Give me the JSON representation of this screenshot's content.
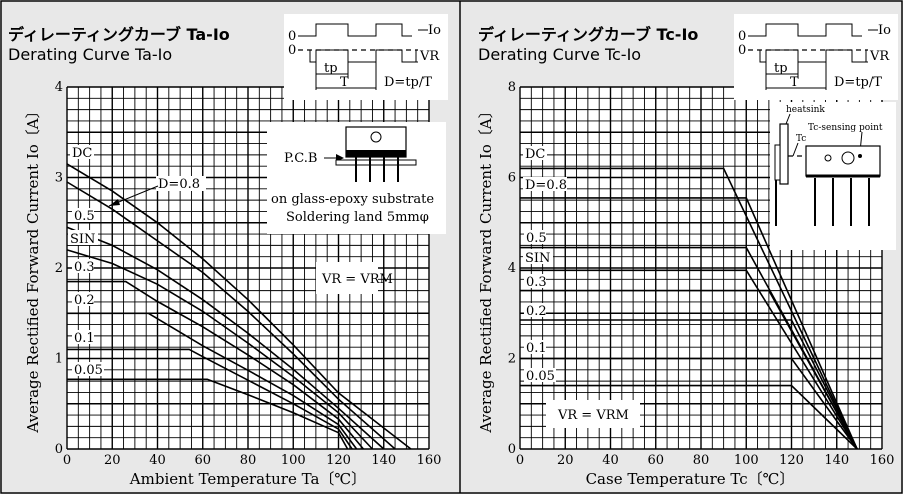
{
  "chart_data": [
    {
      "type": "line",
      "title_jp": "ディレーティングカーブ Ta-Io",
      "title_en": "Derating Curve Ta-Io",
      "xlabel": "Ambient Temperature Ta〔℃〕",
      "ylabel": "Average Rectified Forward Current Io〔A〕",
      "xlim": [
        0,
        160
      ],
      "ylim": [
        0,
        4
      ],
      "x_ticks": [
        "0",
        "20",
        "40",
        "60",
        "80",
        "100",
        "120",
        "140",
        "160"
      ],
      "y_ticks": [
        "0",
        "1",
        "2",
        "3",
        "4"
      ],
      "grid": true,
      "series": [
        {
          "name": "DC",
          "points": [
            [
              0,
              3.15
            ],
            [
              20,
              2.85
            ],
            [
              40,
              2.5
            ],
            [
              60,
              2.1
            ],
            [
              80,
              1.65
            ],
            [
              100,
              1.15
            ],
            [
              120,
              0.62
            ],
            [
              152,
              0
            ]
          ]
        },
        {
          "name": "D=0.8",
          "points": [
            [
              0,
              2.95
            ],
            [
              20,
              2.65
            ],
            [
              40,
              2.3
            ],
            [
              60,
              1.95
            ],
            [
              80,
              1.52
            ],
            [
              100,
              1.05
            ],
            [
              120,
              0.55
            ],
            [
              145,
              0
            ]
          ]
        },
        {
          "name": "0.5",
          "points": [
            [
              0,
              2.45
            ],
            [
              20,
              2.25
            ],
            [
              40,
              1.98
            ],
            [
              60,
              1.65
            ],
            [
              80,
              1.28
            ],
            [
              100,
              0.88
            ],
            [
              120,
              0.45
            ],
            [
              140,
              0
            ]
          ]
        },
        {
          "name": "SIN",
          "points": [
            [
              0,
              2.2
            ],
            [
              20,
              2.05
            ],
            [
              40,
              1.82
            ],
            [
              60,
              1.52
            ],
            [
              80,
              1.17
            ],
            [
              100,
              0.8
            ],
            [
              120,
              0.4
            ],
            [
              135,
              0
            ]
          ]
        },
        {
          "name": "0.3",
          "points": [
            [
              0,
              1.85
            ],
            [
              26,
              1.85
            ],
            [
              40,
              1.63
            ],
            [
              60,
              1.35
            ],
            [
              80,
              1.04
            ],
            [
              100,
              0.71
            ],
            [
              120,
              0.33
            ],
            [
              131,
              0
            ]
          ]
        },
        {
          "name": "0.2",
          "points": [
            [
              0,
              1.5
            ],
            [
              36,
              1.5
            ],
            [
              60,
              1.14
            ],
            [
              80,
              0.87
            ],
            [
              100,
              0.59
            ],
            [
              120,
              0.27
            ],
            [
              128,
              0
            ]
          ]
        },
        {
          "name": "0.1",
          "points": [
            [
              0,
              1.1
            ],
            [
              54,
              1.1
            ],
            [
              60,
              1.02
            ],
            [
              80,
              0.76
            ],
            [
              100,
              0.5
            ],
            [
              120,
              0.22
            ],
            [
              126,
              0
            ]
          ]
        },
        {
          "name": "0.05",
          "points": [
            [
              0,
              0.77
            ],
            [
              62,
              0.77
            ],
            [
              80,
              0.6
            ],
            [
              100,
              0.4
            ],
            [
              120,
              0.18
            ],
            [
              124,
              0
            ]
          ]
        }
      ],
      "notes": {
        "pcb": "P.C.B",
        "substrate": "on glass-epoxy substrate",
        "land": "Soldering land 5mmφ",
        "vr": "VR = VRM"
      },
      "waveform": {
        "io": "Io",
        "vr": "VR",
        "tp": "tp",
        "t": "T",
        "duty": "D=tp/T",
        "zero": "0"
      }
    },
    {
      "type": "line",
      "title_jp": "ディレーティングカーブ Tc-Io",
      "title_en": "Derating Curve Tc-Io",
      "xlabel": "Case Temperature Tc〔℃〕",
      "ylabel": "Average Rectified Forward Current Io〔A〕",
      "xlim": [
        0,
        160
      ],
      "ylim": [
        0,
        8
      ],
      "x_ticks": [
        "0",
        "20",
        "40",
        "60",
        "80",
        "100",
        "120",
        "140",
        "160"
      ],
      "y_ticks": [
        "0",
        "2",
        "4",
        "6",
        "8"
      ],
      "grid": true,
      "series": [
        {
          "name": "DC",
          "points": [
            [
              0,
              6.2
            ],
            [
              90,
              6.2
            ],
            [
              149,
              0
            ]
          ]
        },
        {
          "name": "D=0.8",
          "points": [
            [
              0,
              5.55
            ],
            [
              100,
              5.55
            ],
            [
              149,
              0
            ]
          ]
        },
        {
          "name": "0.5",
          "points": [
            [
              0,
              4.45
            ],
            [
              100,
              4.45
            ],
            [
              149,
              0
            ]
          ]
        },
        {
          "name": "SIN",
          "points": [
            [
              0,
              3.95
            ],
            [
              100,
              3.95
            ],
            [
              149,
              0
            ]
          ]
        },
        {
          "name": "0.3",
          "points": [
            [
              0,
              3.5
            ],
            [
              110,
              3.5
            ],
            [
              149,
              0
            ]
          ]
        },
        {
          "name": "0.2",
          "points": [
            [
              0,
              2.85
            ],
            [
              120,
              2.85
            ],
            [
              149,
              0
            ]
          ]
        },
        {
          "name": "0.1",
          "points": [
            [
              0,
              2.0
            ],
            [
              120,
              2.0
            ],
            [
              149,
              0
            ]
          ]
        },
        {
          "name": "0.05",
          "points": [
            [
              0,
              1.4
            ],
            [
              120,
              1.4
            ],
            [
              149,
              0
            ]
          ]
        }
      ],
      "notes": {
        "heatsink": "heatsink",
        "tc": "Tc",
        "sensing": "Tc-sensing point",
        "vr": "VR = VRM"
      },
      "waveform": {
        "io": "Io",
        "vr": "VR",
        "tp": "tp",
        "t": "T",
        "duty": "D=tp/T",
        "zero": "0"
      }
    }
  ]
}
